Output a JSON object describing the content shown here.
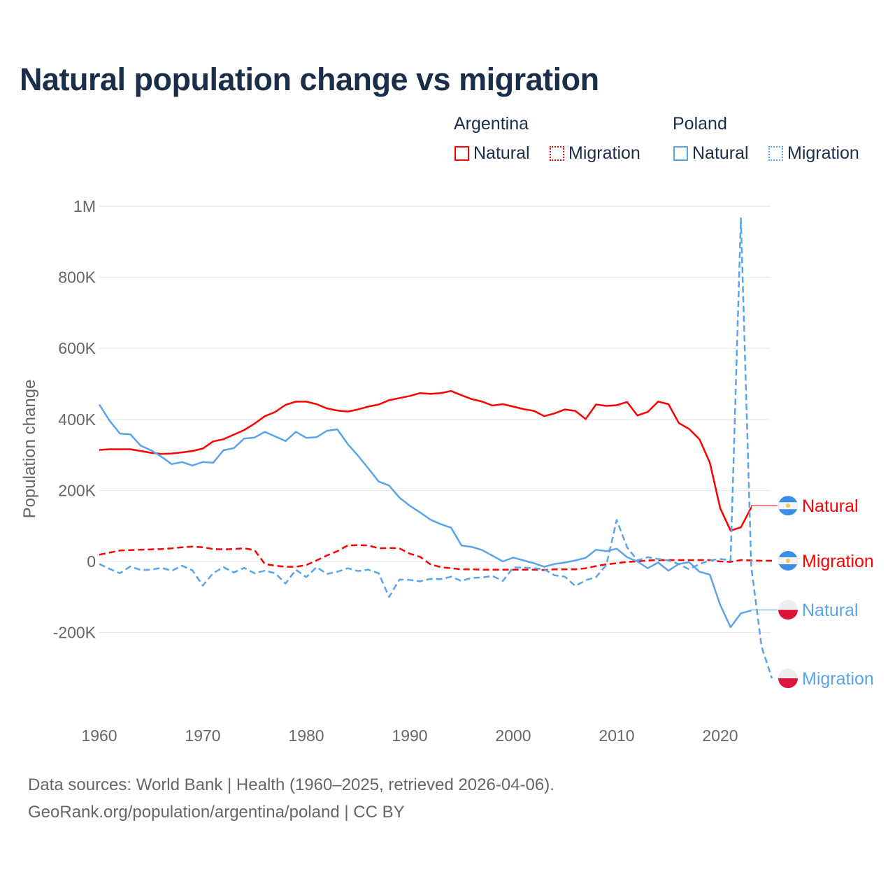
{
  "title": "Natural population change vs migration",
  "legend": {
    "groups": [
      {
        "name": "Argentina",
        "items": [
          "Natural",
          "Migration"
        ],
        "color": "#ff0000"
      },
      {
        "name": "Poland",
        "items": [
          "Natural",
          "Migration"
        ],
        "color": "#5aa4ea"
      }
    ]
  },
  "source_lines": [
    "Data sources: World Bank | Health (1960–2025, retrieved 2026-04-06).",
    "GeoRank.org/population/argentina/poland | CC BY"
  ],
  "chart_data": {
    "type": "line",
    "title": "Natural population change vs migration",
    "xlabel": "",
    "ylabel": "Population change",
    "xlim": [
      1960,
      2025
    ],
    "ylim": [
      -350000,
      1000000
    ],
    "x_ticks": [
      1960,
      1970,
      1980,
      1990,
      2000,
      2010,
      2020
    ],
    "y_ticks": [
      {
        "v": -200000,
        "label": "-200K"
      },
      {
        "v": 0,
        "label": "0"
      },
      {
        "v": 200000,
        "label": "200K"
      },
      {
        "v": 400000,
        "label": "400K"
      },
      {
        "v": 600000,
        "label": "600K"
      },
      {
        "v": 800000,
        "label": "800K"
      },
      {
        "v": 1000000,
        "label": "1M"
      }
    ],
    "grid": true,
    "legend_position": "top-right",
    "series": [
      {
        "name": "Argentina Natural",
        "label": "Natural",
        "country": "Argentina",
        "color": "#ff0000",
        "dash": false,
        "start": 1960,
        "values": [
          314000,
          316000,
          316000,
          316000,
          311000,
          306000,
          303000,
          304000,
          307000,
          311000,
          318000,
          338000,
          344000,
          357000,
          370000,
          388000,
          409000,
          421000,
          441000,
          450000,
          450000,
          443000,
          431000,
          425000,
          422000,
          428000,
          436000,
          442000,
          454000,
          460000,
          466000,
          474000,
          472000,
          474000,
          480000,
          468000,
          457000,
          450000,
          439000,
          443000,
          436000,
          429000,
          424000,
          409000,
          417000,
          428000,
          424000,
          401000,
          442000,
          438000,
          440000,
          449000,
          411000,
          421000,
          450000,
          443000,
          390000,
          373000,
          344000,
          278000,
          150000,
          87000,
          96000,
          152000
        ]
      },
      {
        "name": "Argentina Migration",
        "label": "Migration",
        "country": "Argentina",
        "color": "#ff0000",
        "dash": true,
        "start": 1960,
        "values": [
          19000,
          25000,
          31000,
          32000,
          33000,
          34000,
          35000,
          37000,
          40000,
          42000,
          40000,
          35000,
          34000,
          35000,
          37000,
          32000,
          -7000,
          -12000,
          -15000,
          -15000,
          -10000,
          3000,
          17000,
          29000,
          45000,
          46000,
          45000,
          37000,
          38000,
          37000,
          22000,
          13000,
          -8000,
          -16000,
          -19000,
          -22000,
          -22000,
          -23000,
          -23000,
          -23000,
          -23000,
          -23000,
          -23000,
          -24000,
          -22000,
          -22000,
          -22000,
          -19000,
          -13000,
          -8000,
          -5000,
          -1000,
          0,
          3000,
          4000,
          4000,
          4000,
          4000,
          4000,
          4000,
          0,
          -1000,
          4000,
          3000,
          2000,
          2000
        ]
      },
      {
        "name": "Poland Natural",
        "label": "Natural",
        "country": "Poland",
        "color": "#5aa4ea",
        "dash": false,
        "start": 1960,
        "values": [
          442000,
          396000,
          360000,
          358000,
          326000,
          313000,
          295000,
          274000,
          280000,
          270000,
          280000,
          278000,
          313000,
          319000,
          346000,
          349000,
          365000,
          352000,
          339000,
          365000,
          348000,
          350000,
          368000,
          372000,
          331000,
          298000,
          262000,
          225000,
          214000,
          180000,
          157000,
          138000,
          118000,
          105000,
          95000,
          45000,
          41000,
          32000,
          16000,
          0,
          11000,
          3000,
          -5000,
          -15000,
          -7000,
          -3000,
          3000,
          10000,
          33000,
          29000,
          36000,
          12000,
          0,
          -19000,
          -3000,
          -26000,
          -7000,
          -2000,
          -29000,
          -37000,
          -122000,
          -185000,
          -146000,
          -138000
        ]
      },
      {
        "name": "Poland Migration",
        "label": "Migration",
        "country": "Poland",
        "color": "#5aa4ea",
        "dash": true,
        "start": 1960,
        "values": [
          -7000,
          -21000,
          -33000,
          -14000,
          -24000,
          -23000,
          -18000,
          -26000,
          -12000,
          -25000,
          -68000,
          -33000,
          -16000,
          -31000,
          -18000,
          -33000,
          -26000,
          -33000,
          -62000,
          -23000,
          -44000,
          -16000,
          -35000,
          -29000,
          -19000,
          -27000,
          -23000,
          -33000,
          -100000,
          -51000,
          -52000,
          -56000,
          -49000,
          -50000,
          -43000,
          -55000,
          -46000,
          -45000,
          -41000,
          -55000,
          -17000,
          -17000,
          -19000,
          -22000,
          -39000,
          -43000,
          -69000,
          -53000,
          -44000,
          -10000,
          117000,
          40000,
          3000,
          12000,
          7000,
          3000,
          -7000,
          -22000,
          -7000,
          3000,
          7000,
          3000,
          966000,
          -14000,
          -240000,
          -329000
        ]
      }
    ],
    "end_labels": [
      {
        "text": "Natural",
        "country": "Argentina",
        "color": "#ff0000",
        "value": 157000
      },
      {
        "text": "Migration",
        "country": "Argentina",
        "color": "#ff0000",
        "value": 2000
      },
      {
        "text": "Natural",
        "country": "Poland",
        "color": "#5aa4ea",
        "value": -136000
      },
      {
        "text": "Migration",
        "country": "Poland",
        "color": "#5aa4ea",
        "value": -329000
      }
    ]
  }
}
